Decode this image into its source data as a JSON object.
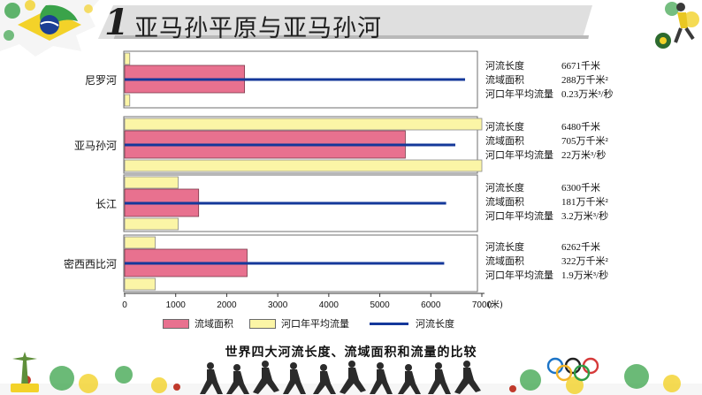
{
  "slide": {
    "number": "1",
    "title": "亚马孙平原与亚马孙河",
    "caption": "世界四大河流长度、流域面积和流量的比较"
  },
  "colors": {
    "area": "#e8718f",
    "flow": "#fbf5a6",
    "length": "#14389a",
    "frame": "#6f6f6f",
    "title_bar": "#dcdcdc",
    "accent_green": "#3aa34a",
    "accent_yellow": "#f3d229"
  },
  "icons": [
    "brazil-flag-icon",
    "soccer-player-icon",
    "soccer-ball-icon",
    "athlete-silhouette-icon",
    "rio-landmark-icon",
    "olympic-rings-icon"
  ],
  "legend": {
    "area": "流域面积",
    "flow": "河口年平均流量",
    "length": "河流长度"
  },
  "chart_data": {
    "type": "bar",
    "orientation": "horizontal",
    "categories": [
      "尼罗河",
      "亚马孙河",
      "长江",
      "密西西比河"
    ],
    "xlim": [
      0,
      7000
    ],
    "x_unit": "(米)",
    "x_ticks": [
      "0",
      "1000",
      "2000",
      "3000",
      "4000",
      "5000",
      "6000",
      "7000"
    ],
    "grid": false,
    "legend_position": "bottom",
    "series": [
      {
        "name": "流域面积",
        "kind": "bar",
        "values": [
          2350,
          5500,
          1450,
          2400
        ]
      },
      {
        "name": "河口年平均流量",
        "kind": "bar",
        "values": [
          100,
          7000,
          1050,
          600
        ]
      },
      {
        "name": "河流长度",
        "kind": "line",
        "values": [
          6671,
          6480,
          6300,
          6262
        ]
      }
    ]
  },
  "river_info": [
    {
      "length_label": "河流长度",
      "length": "6671千米",
      "area_label": "流域面积",
      "area": "288万千米²",
      "flow_label": "河口年平均流量",
      "flow": "0.23万米³/秒"
    },
    {
      "length_label": "河流长度",
      "length": "6480千米",
      "area_label": "流域面积",
      "area": "705万千米²",
      "flow_label": "河口年平均流量",
      "flow": "22万米³/秒"
    },
    {
      "length_label": "河流长度",
      "length": "6300千米",
      "area_label": "流域面积",
      "area": "181万千米²",
      "flow_label": "河口年平均流量",
      "flow": "3.2万米³/秒"
    },
    {
      "length_label": "河流长度",
      "length": "6262千米",
      "area_label": "流域面积",
      "area": "322万千米²",
      "flow_label": "河口年平均流量",
      "flow": "1.9万米³/秒"
    }
  ]
}
